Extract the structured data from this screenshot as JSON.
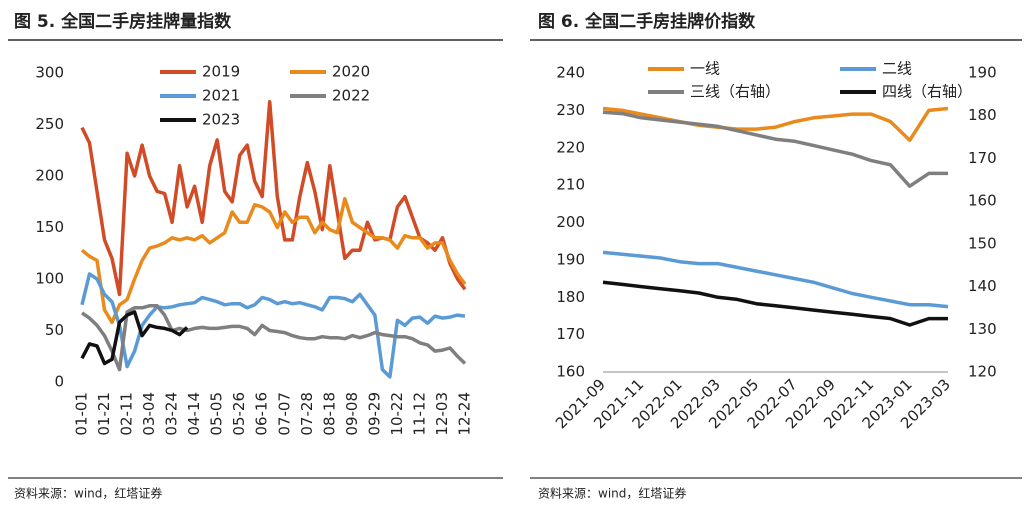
{
  "chart_data": [
    {
      "type": "line",
      "title": "图 5. 全国二手房挂牌量指数",
      "source": "资料来源：wind，红塔证券",
      "categories": [
        "01-01",
        null,
        null,
        "01-21",
        null,
        null,
        "02-11",
        null,
        null,
        "03-04",
        null,
        null,
        "03-24",
        null,
        null,
        "04-14",
        null,
        null,
        "05-05",
        null,
        null,
        "05-26",
        null,
        null,
        "06-16",
        null,
        null,
        "07-07",
        null,
        null,
        "07-28",
        null,
        null,
        "08-18",
        null,
        null,
        "09-08",
        null,
        null,
        "09-29",
        null,
        null,
        "10-22",
        null,
        null,
        "11-12",
        null,
        null,
        "12-03",
        null,
        null,
        "12-24"
      ],
      "ylim": [
        0,
        300
      ],
      "yticks": [
        0,
        50,
        100,
        150,
        200,
        250,
        300
      ],
      "grid": false,
      "series": [
        {
          "name": "2019",
          "color": "#d24b27",
          "values": [
            247,
            232,
            185,
            138,
            120,
            85,
            222,
            200,
            230,
            200,
            185,
            183,
            155,
            210,
            170,
            190,
            155,
            210,
            235,
            185,
            175,
            220,
            230,
            195,
            180,
            272,
            180,
            138,
            138,
            180,
            213,
            185,
            148,
            210,
            165,
            120,
            128,
            128,
            155,
            138,
            140,
            138,
            170,
            180,
            160,
            140,
            135,
            128,
            140,
            115,
            100,
            90
          ]
        },
        {
          "name": "2020",
          "color": "#e98a1d",
          "values": [
            128,
            122,
            118,
            70,
            58,
            75,
            80,
            100,
            118,
            130,
            132,
            135,
            140,
            138,
            140,
            138,
            142,
            135,
            140,
            145,
            165,
            155,
            155,
            172,
            170,
            165,
            150,
            165,
            155,
            160,
            160,
            145,
            155,
            148,
            145,
            178,
            155,
            150,
            145,
            140,
            140,
            138,
            130,
            142,
            140,
            140,
            130,
            135,
            135,
            118,
            105,
            95
          ]
        },
        {
          "name": "2021",
          "color": "#5b9bd5",
          "values": [
            75,
            105,
            100,
            85,
            78,
            55,
            15,
            30,
            55,
            65,
            73,
            72,
            73,
            75,
            76,
            77,
            82,
            80,
            78,
            75,
            76,
            76,
            72,
            75,
            82,
            80,
            76,
            78,
            76,
            77,
            75,
            73,
            70,
            82,
            82,
            81,
            78,
            85,
            75,
            65,
            12,
            5,
            60,
            55,
            62,
            63,
            57,
            64,
            62,
            63,
            65,
            64
          ]
        },
        {
          "name": "2022",
          "color": "#7f7f7f",
          "values": [
            67,
            62,
            55,
            45,
            30,
            12,
            68,
            72,
            72,
            74,
            74,
            65,
            50,
            52,
            50,
            52,
            53,
            52,
            52,
            53,
            54,
            54,
            52,
            46,
            55,
            50,
            49,
            48,
            45,
            43,
            42,
            42,
            44,
            43,
            43,
            42,
            45,
            43,
            45,
            48,
            46,
            45,
            44,
            44,
            42,
            38,
            36,
            30,
            31,
            33,
            25,
            18
          ]
        },
        {
          "name": "2023",
          "color": "#111111",
          "values": [
            23,
            37,
            35,
            18,
            22,
            58,
            65,
            68,
            45,
            55,
            53,
            52,
            50,
            46,
            53,
            null,
            null,
            null,
            null,
            null,
            null,
            null,
            null,
            null,
            null,
            null,
            null,
            null,
            null,
            null,
            null,
            null,
            null,
            null,
            null,
            null,
            null,
            null,
            null,
            null,
            null,
            null,
            null,
            null,
            null,
            null,
            null,
            null,
            null,
            null,
            null,
            null
          ]
        }
      ]
    },
    {
      "type": "line",
      "title": "图 6. 全国二手房挂牌价指数",
      "source": "资料来源：wind，红塔证券",
      "categories": [
        "2021-09",
        null,
        "2021-11",
        null,
        "2022-01",
        null,
        "2022-03",
        null,
        "2022-05",
        null,
        "2022-07",
        null,
        "2022-09",
        null,
        "2022-11",
        null,
        "2023-01",
        null,
        "2023-03"
      ],
      "ylim": [
        160,
        240
      ],
      "yticks": [
        160,
        170,
        180,
        190,
        200,
        210,
        220,
        230,
        240
      ],
      "y2lim": [
        120,
        190
      ],
      "y2ticks": [
        120,
        130,
        140,
        150,
        160,
        170,
        180,
        190
      ],
      "grid": false,
      "series": [
        {
          "name": "一线",
          "color": "#e98a1d",
          "values": [
            230.5,
            230,
            229,
            228,
            227,
            226,
            225.5,
            225,
            225,
            225.5,
            227,
            228,
            228.5,
            229,
            229,
            227,
            222,
            230,
            230.5
          ]
        },
        {
          "name": "二线",
          "color": "#5b9bd5",
          "values": [
            192,
            191.5,
            191,
            190.5,
            189.5,
            189,
            189,
            188,
            187,
            186,
            185,
            184,
            182.5,
            181,
            180,
            179,
            178,
            178,
            177.5
          ]
        },
        {
          "name": "三线（右轴）",
          "color": "#7f7f7f",
          "axis": "y2",
          "values": [
            180.8,
            180.5,
            179.5,
            179,
            178.5,
            178,
            177.5,
            176.5,
            175.5,
            174.5,
            174,
            173,
            172,
            171,
            169.5,
            168.5,
            163.5,
            166.5,
            166.5
          ]
        },
        {
          "name": "四线（右轴）",
          "color": "#111111",
          "axis": "y2",
          "values": [
            141,
            140.5,
            140,
            139.5,
            139,
            138.5,
            137.5,
            137,
            136,
            135.5,
            135,
            134.5,
            134,
            133.5,
            133,
            132.5,
            131,
            132.5,
            132.5
          ]
        }
      ]
    }
  ]
}
